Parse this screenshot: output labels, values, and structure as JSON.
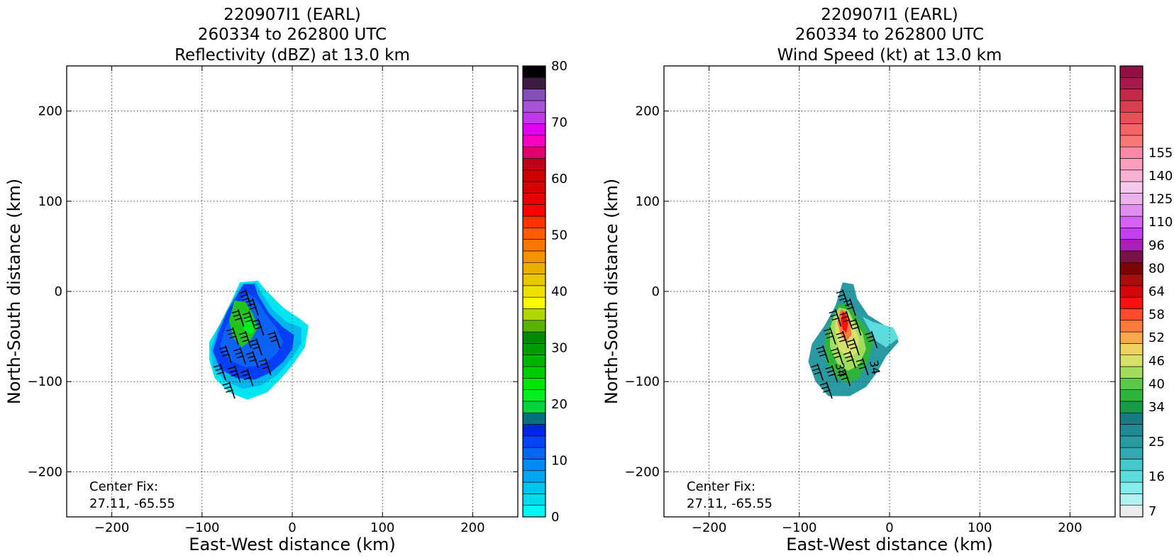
{
  "chart_data": [
    {
      "type": "heatmap",
      "title_lines": [
        "220907I1 (EARL)",
        "260334 to 262800 UTC",
        "Reflectivity (dBZ) at 13.0 km"
      ],
      "xlabel": "East-West distance (km)",
      "ylabel": "North-South distance (km)",
      "xlim": [
        -250,
        250
      ],
      "ylim": [
        -250,
        250
      ],
      "xticks": [
        -200,
        -100,
        0,
        100,
        200
      ],
      "yticks": [
        -200,
        -100,
        0,
        100,
        200
      ],
      "xtick_labels": [
        "−200",
        "−100",
        "0",
        "100",
        "200"
      ],
      "ytick_labels": [
        "−200",
        "−100",
        "0",
        "100",
        "200"
      ],
      "grid": true,
      "annotation": [
        "Center Fix:",
        "27.11, -65.55"
      ],
      "colorbar": {
        "min": 0,
        "max": 80,
        "ticks": [
          0,
          10,
          20,
          30,
          40,
          50,
          60,
          70,
          80
        ],
        "tick_labels": [
          "0",
          "10",
          "20",
          "30",
          "40",
          "50",
          "60",
          "70",
          "80"
        ],
        "colors": [
          "#00f5f5",
          "#00dcec",
          "#00c4ec",
          "#00a7f0",
          "#0488f3",
          "#0566f6",
          "#0444f9",
          "#0227dd",
          "#006f80",
          "#00d63c",
          "#00ef21",
          "#00e600",
          "#00cc00",
          "#00b400",
          "#009c00",
          "#008a00",
          "#58b300",
          "#b0d700",
          "#fafa00",
          "#efe000",
          "#e8c700",
          "#eaae00",
          "#f39300",
          "#f97700",
          "#fe5b00",
          "#ff3300",
          "#fd0000",
          "#e70000",
          "#d80000",
          "#cd0000",
          "#c00016",
          "#e1006c",
          "#f800c4",
          "#e100f0",
          "#bf38e8",
          "#a653d6",
          "#844fb8",
          "#3c1c40",
          "#000000"
        ]
      },
      "series": [
        {
          "values_description": "",
          "regions": [
            {
              "color": "#00e6f0",
              "points": [
                [
                  -58,
                  10
                ],
                [
                  -38,
                  12
                ],
                [
                  -30,
                  2
                ],
                [
                  -10,
                  -18
                ],
                [
                  8,
                  -30
                ],
                [
                  18,
                  -38
                ],
                [
                  14,
                  -62
                ],
                [
                  0,
                  -82
                ],
                [
                  -12,
                  -96
                ],
                [
                  -28,
                  -112
                ],
                [
                  -50,
                  -120
                ],
                [
                  -70,
                  -112
                ],
                [
                  -86,
                  -96
                ],
                [
                  -92,
                  -76
                ],
                [
                  -92,
                  -56
                ],
                [
                  -80,
                  -36
                ],
                [
                  -68,
                  -12
                ]
              ]
            },
            {
              "color": "#00b6ec",
              "points": [
                [
                  -56,
                  8
                ],
                [
                  -40,
                  10
                ],
                [
                  -34,
                  -2
                ],
                [
                  -22,
                  -20
                ],
                [
                  -6,
                  -34
                ],
                [
                  10,
                  -40
                ],
                [
                  10,
                  -58
                ],
                [
                  -2,
                  -76
                ],
                [
                  -16,
                  -92
                ],
                [
                  -34,
                  -104
                ],
                [
                  -54,
                  -108
                ],
                [
                  -74,
                  -100
                ],
                [
                  -88,
                  -84
                ],
                [
                  -90,
                  -62
                ],
                [
                  -82,
                  -40
                ],
                [
                  -70,
                  -16
                ]
              ]
            },
            {
              "color": "#0540f8",
              "points": [
                [
                  -54,
                  8
                ],
                [
                  -42,
                  8
                ],
                [
                  -38,
                  -4
                ],
                [
                  -26,
                  -24
                ],
                [
                  -10,
                  -40
                ],
                [
                  2,
                  -48
                ],
                [
                  0,
                  -64
                ],
                [
                  -10,
                  -78
                ],
                [
                  -24,
                  -90
                ],
                [
                  -42,
                  -98
                ],
                [
                  -62,
                  -96
                ],
                [
                  -80,
                  -86
                ],
                [
                  -88,
                  -66
                ],
                [
                  -82,
                  -46
                ],
                [
                  -72,
                  -22
                ]
              ]
            },
            {
              "color": "#0a63f5",
              "points": [
                [
                  -50,
                  -2
                ],
                [
                  -40,
                  -8
                ],
                [
                  -30,
                  -24
                ],
                [
                  -18,
                  -40
                ],
                [
                  -10,
                  -56
                ],
                [
                  -18,
                  -70
                ],
                [
                  -34,
                  -82
                ],
                [
                  -52,
                  -84
                ],
                [
                  -70,
                  -76
                ],
                [
                  -80,
                  -60
                ],
                [
                  -74,
                  -40
                ],
                [
                  -64,
                  -20
                ]
              ]
            },
            {
              "color": "#22c41c",
              "points": [
                [
                  -64,
                  -10
                ],
                [
                  -52,
                  -12
                ],
                [
                  -44,
                  -24
                ],
                [
                  -38,
                  -40
                ],
                [
                  -46,
                  -54
                ],
                [
                  -56,
                  -62
                ],
                [
                  -66,
                  -50
                ],
                [
                  -70,
                  -32
                ]
              ]
            },
            {
              "color": "#00ef21",
              "points": [
                [
                  -52,
                  -28
                ],
                [
                  -44,
                  -30
                ],
                [
                  -40,
                  -40
                ],
                [
                  -46,
                  -48
                ],
                [
                  -54,
                  -42
                ]
              ]
            }
          ]
        }
      ]
    },
    {
      "type": "heatmap",
      "title_lines": [
        "220907I1 (EARL)",
        "260334 to 262800 UTC",
        "Wind Speed (kt) at 13.0 km"
      ],
      "xlabel": "East-West distance (km)",
      "ylabel": "North-South distance (km)",
      "xlim": [
        -250,
        250
      ],
      "ylim": [
        -250,
        250
      ],
      "xticks": [
        -200,
        -100,
        0,
        100,
        200
      ],
      "yticks": [
        -200,
        -100,
        0,
        100,
        200
      ],
      "xtick_labels": [
        "−200",
        "−100",
        "0",
        "100",
        "200"
      ],
      "ytick_labels": [
        "−200",
        "−100",
        "0",
        "100",
        "200"
      ],
      "grid": true,
      "annotation": [
        "Center Fix:",
        "27.11, -65.55"
      ],
      "contour_labels": [
        {
          "text": "34",
          "x": -22,
          "y": -77
        },
        {
          "text": "34",
          "x": -60,
          "y": -80
        }
      ],
      "colorbar": {
        "tick_labels": [
          "7",
          "16",
          "25",
          "34",
          "40",
          "46",
          "52",
          "58",
          "64",
          "80",
          "96",
          "110",
          "125",
          "140",
          "155"
        ],
        "tick_bins": [
          0,
          3,
          6,
          9,
          11,
          13,
          15,
          17,
          19,
          21,
          23,
          25,
          27,
          29,
          31
        ],
        "colors": [
          "#ececec",
          "#b5f0f0",
          "#86ecec",
          "#5cdcdc",
          "#46c8cc",
          "#32a8b0",
          "#2a9aa2",
          "#208a92",
          "#1a7a82",
          "#169c46",
          "#2eb43a",
          "#5cc846",
          "#a2dc5c",
          "#d7e06a",
          "#f0d260",
          "#f7a84a",
          "#fb7a3c",
          "#fb4a2c",
          "#f81010",
          "#d20808",
          "#a80c0c",
          "#7a0404",
          "#7a1248",
          "#a820b8",
          "#c43ef2",
          "#d462f2",
          "#e08ef0",
          "#ecb2ec",
          "#f6c8ec",
          "#f7b2d2",
          "#fc9ebe",
          "#f88aa8",
          "#f87878",
          "#f46466",
          "#e8505a",
          "#d83e50",
          "#c02c48",
          "#a8184a",
          "#901042"
        ]
      },
      "series": [
        {
          "values_description": "",
          "regions": [
            {
              "color": "#2a9aa2",
              "points": [
                [
                  -52,
                  10
                ],
                [
                  -40,
                  8
                ],
                [
                  -36,
                  -8
                ],
                [
                  -24,
                  -26
                ],
                [
                  -8,
                  -36
                ],
                [
                  6,
                  -44
                ],
                [
                  10,
                  -56
                ],
                [
                  -4,
                  -72
                ],
                [
                  -14,
                  -90
                ],
                [
                  -26,
                  -106
                ],
                [
                  -44,
                  -116
                ],
                [
                  -68,
                  -116
                ],
                [
                  -82,
                  -100
                ],
                [
                  -90,
                  -78
                ],
                [
                  -86,
                  -58
                ],
                [
                  -72,
                  -38
                ],
                [
                  -60,
                  -16
                ]
              ]
            },
            {
              "color": "#5cdcdc",
              "points": [
                [
                  -30,
                  -28
                ],
                [
                  -18,
                  -34
                ],
                [
                  4,
                  -40
                ],
                [
                  10,
                  -52
                ],
                [
                  -4,
                  -62
                ],
                [
                  -16,
                  -54
                ]
              ]
            },
            {
              "color": "#2eb43a",
              "points": [
                [
                  -56,
                  -14
                ],
                [
                  -46,
                  -14
                ],
                [
                  -38,
                  -26
                ],
                [
                  -26,
                  -40
                ],
                [
                  -18,
                  -56
                ],
                [
                  -24,
                  -78
                ],
                [
                  -34,
                  -96
                ],
                [
                  -46,
                  -102
                ],
                [
                  -58,
                  -96
                ],
                [
                  -70,
                  -78
                ],
                [
                  -72,
                  -56
                ],
                [
                  -66,
                  -34
                ]
              ]
            },
            {
              "color": "#a2dc5c",
              "points": [
                [
                  -56,
                  -18
                ],
                [
                  -46,
                  -20
                ],
                [
                  -40,
                  -32
                ],
                [
                  -30,
                  -46
                ],
                [
                  -26,
                  -64
                ],
                [
                  -34,
                  -82
                ],
                [
                  -46,
                  -88
                ],
                [
                  -58,
                  -80
                ],
                [
                  -66,
                  -62
                ],
                [
                  -66,
                  -42
                ],
                [
                  -62,
                  -28
                ]
              ]
            },
            {
              "color": "#d7e06a",
              "points": [
                [
                  -54,
                  -22
                ],
                [
                  -46,
                  -24
                ],
                [
                  -40,
                  -36
                ],
                [
                  -34,
                  -52
                ],
                [
                  -36,
                  -68
                ],
                [
                  -46,
                  -74
                ],
                [
                  -56,
                  -64
                ],
                [
                  -60,
                  -46
                ],
                [
                  -60,
                  -32
                ]
              ]
            },
            {
              "color": "#fb7a3c",
              "points": [
                [
                  -54,
                  -20
                ],
                [
                  -48,
                  -22
                ],
                [
                  -44,
                  -34
                ],
                [
                  -42,
                  -48
                ],
                [
                  -48,
                  -56
                ],
                [
                  -54,
                  -48
                ],
                [
                  -58,
                  -34
                ]
              ]
            },
            {
              "color": "#f81010",
              "points": [
                [
                  -52,
                  -22
                ],
                [
                  -48,
                  -26
                ],
                [
                  -46,
                  -36
                ],
                [
                  -48,
                  -46
                ],
                [
                  -52,
                  -42
                ],
                [
                  -54,
                  -32
                ]
              ]
            }
          ]
        }
      ]
    }
  ]
}
